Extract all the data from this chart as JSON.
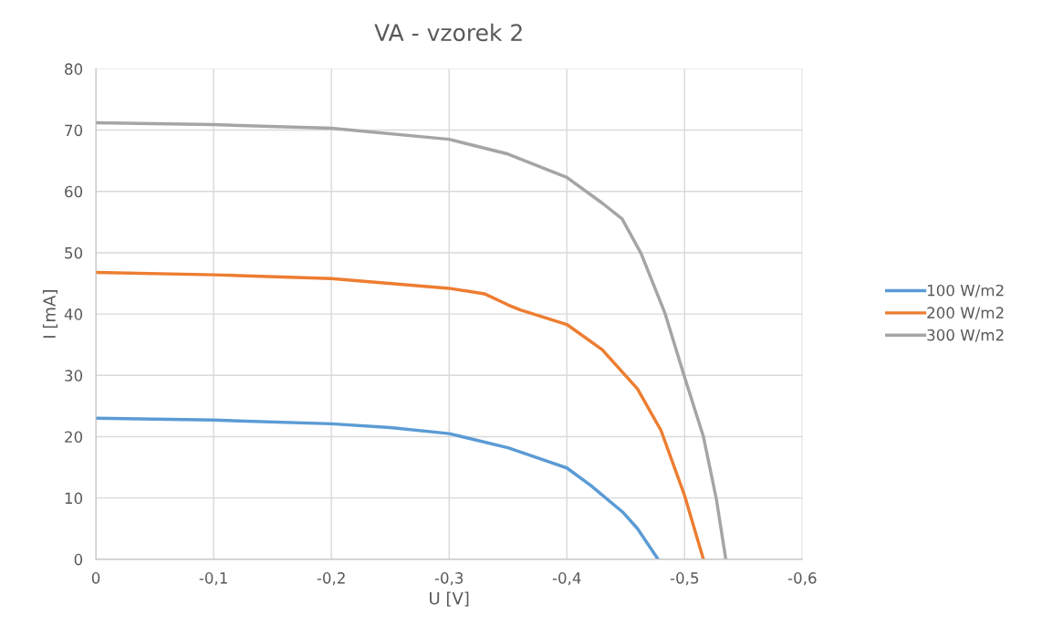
{
  "chart_data": {
    "type": "line",
    "title": "VA - vzorek 2",
    "xlabel": "U [V]",
    "ylabel": "I [mA]",
    "xlim": [
      0,
      -0.6
    ],
    "ylim": [
      0,
      80
    ],
    "xticks": [
      0,
      {
        "value": -0.1,
        "label": "-0,1"
      },
      {
        "value": -0.2,
        "label": "-0,2"
      },
      {
        "value": -0.3,
        "label": "-0,3"
      },
      {
        "value": -0.4,
        "label": "-0,4"
      },
      {
        "value": -0.5,
        "label": "-0,5"
      },
      {
        "value": -0.6,
        "label": "-0,6"
      }
    ],
    "yticks": [
      0,
      10,
      20,
      30,
      40,
      50,
      60,
      70,
      80
    ],
    "grid": true,
    "legend": "right",
    "marker": "none",
    "line_style": "solid",
    "series": [
      {
        "name": "100 W/m2",
        "color": "#5b9bd5",
        "x": [
          0,
          -0.1,
          -0.2,
          -0.25,
          -0.3,
          -0.35,
          -0.4,
          -0.42,
          -0.448,
          -0.46,
          -0.4775
        ],
        "values": [
          23,
          22.7,
          22.1,
          21.5,
          20.5,
          18.2,
          14.9,
          12.1,
          7.6,
          5,
          0
        ]
      },
      {
        "name": "200 W/m2",
        "color": "#ed7d31",
        "x": [
          0,
          -0.1,
          -0.2,
          -0.3,
          -0.33,
          -0.35,
          -0.36,
          -0.4,
          -0.43,
          -0.46,
          -0.48,
          -0.5,
          -0.516
        ],
        "values": [
          46.8,
          46.4,
          45.8,
          44.2,
          43.3,
          41.5,
          40.7,
          38.3,
          34.2,
          27.8,
          21,
          10.4,
          0
        ]
      },
      {
        "name": "300 W/m2",
        "color": "#a5a5a5",
        "x": [
          0,
          -0.1,
          -0.2,
          -0.3,
          -0.35,
          -0.4,
          -0.43,
          -0.447,
          -0.463,
          -0.4834,
          -0.4995,
          -0.516,
          -0.527,
          -0.535
        ],
        "values": [
          71.2,
          70.9,
          70.3,
          68.5,
          66.1,
          62.3,
          58.1,
          55.5,
          49.9,
          40.1,
          30,
          20,
          9.8,
          0
        ]
      }
    ]
  }
}
